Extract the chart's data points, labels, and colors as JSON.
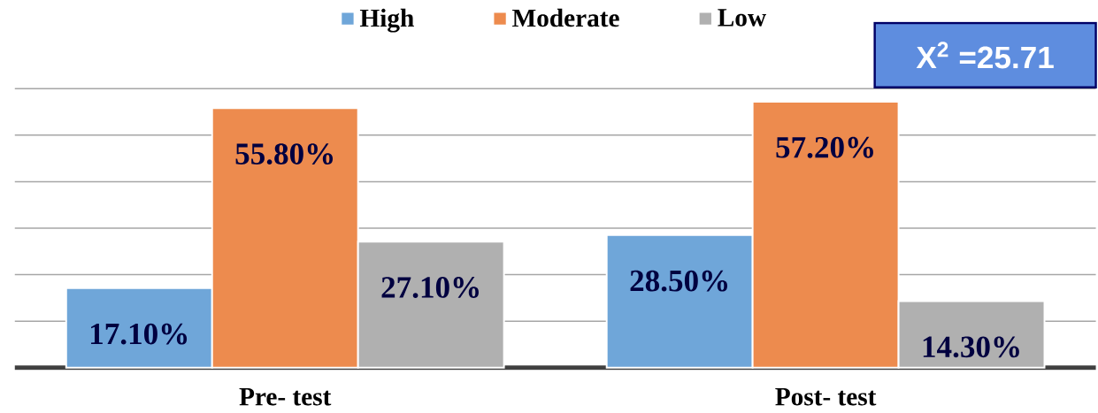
{
  "chart_data": {
    "type": "bar",
    "categories": [
      "Pre- test",
      "Post- test"
    ],
    "series": [
      {
        "name": "High",
        "color": "#6fa6d9",
        "values": [
          17.1,
          28.5
        ],
        "value_labels": [
          "17.10%",
          "28.50%"
        ]
      },
      {
        "name": "Moderate",
        "color": "#ed8b4e",
        "values": [
          55.8,
          57.2
        ],
        "value_labels": [
          "55.80%",
          "57.20%"
        ]
      },
      {
        "name": "Low",
        "color": "#b0b0b0",
        "values": [
          27.1,
          14.3
        ],
        "value_labels": [
          "27.10%",
          "14.30%"
        ]
      }
    ],
    "yticks": [
      {
        "value": 10,
        "label": null
      },
      {
        "value": 20,
        "label": null
      },
      {
        "value": 30,
        "label": null
      },
      {
        "value": 40,
        "label": null
      },
      {
        "value": 50,
        "label": null
      },
      {
        "value": 60,
        "label": null
      }
    ],
    "grid": "y",
    "tick_labels": "x",
    "legend": "top",
    "annotations": [
      "X$^{2}$ =25.71"
    ]
  }
}
